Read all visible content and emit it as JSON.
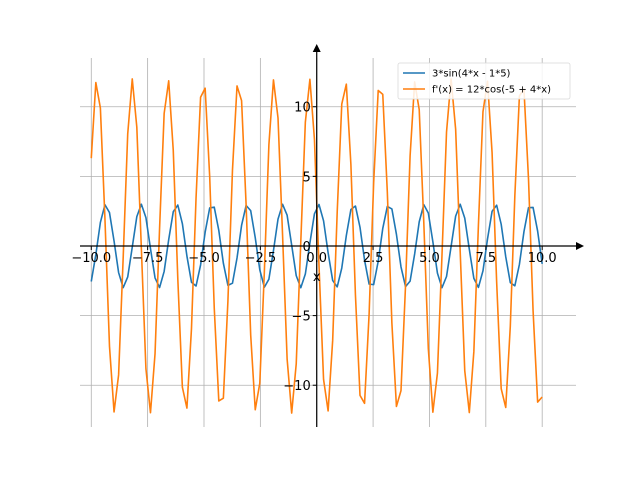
{
  "chart_data": {
    "type": "line",
    "xlabel": "x",
    "ylabel": "",
    "xlim": [
      -10.5,
      11.5
    ],
    "ylim": [
      -13.0,
      13.5
    ],
    "grid": true,
    "legend_position": "top-right",
    "x_ticks": [
      -10.0,
      -7.5,
      -5.0,
      -2.5,
      0.0,
      2.5,
      5.0,
      7.5,
      10.0
    ],
    "x_tick_labels": [
      "−10.0",
      "−7.5",
      "−5.0",
      "−2.5",
      "0.0",
      "2.5",
      "5.0",
      "7.5",
      "10.0"
    ],
    "y_ticks": [
      -10,
      -5,
      0,
      5,
      10
    ],
    "y_tick_labels": [
      "−10",
      "−5",
      "0",
      "5",
      "10"
    ],
    "x_range": [
      -10,
      10
    ],
    "series": [
      {
        "name": "3*sin(4*x - 1*5)",
        "color": "#1f77b4",
        "amplitude": 3,
        "frequency": 4,
        "phase": -5,
        "kind": "sin"
      },
      {
        "name": "f'(x) = 12*cos(-5 + 4*x)",
        "color": "#ff7f0e",
        "amplitude": 12,
        "frequency": 4,
        "phase": -5,
        "kind": "cos"
      }
    ]
  }
}
